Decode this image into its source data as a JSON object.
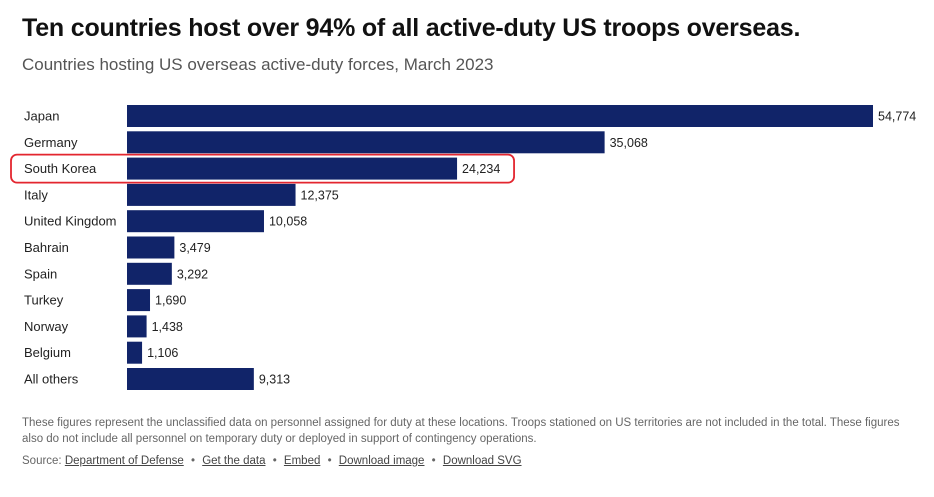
{
  "title": "Ten countries host over 94% of all active-duty US troops overseas.",
  "subtitle": "Countries hosting US overseas active-duty forces, March 2023",
  "chart_data": {
    "type": "bar",
    "orientation": "horizontal",
    "categories": [
      "Japan",
      "Germany",
      "South Korea",
      "Italy",
      "United Kingdom",
      "Bahrain",
      "Spain",
      "Turkey",
      "Norway",
      "Belgium",
      "All others"
    ],
    "values": [
      54774,
      35068,
      24234,
      12375,
      10058,
      3479,
      3292,
      1690,
      1438,
      1106,
      9313
    ],
    "value_labels": [
      "54,774",
      "35,068",
      "24,234",
      "12,375",
      "10,058",
      "3,479",
      "3,292",
      "1,690",
      "1,438",
      "1,106",
      "9,313"
    ],
    "highlighted_category": "South Korea",
    "xlim": [
      0,
      54774
    ],
    "grid": false,
    "bar_color": "#112469",
    "highlight_color": "#e3262f"
  },
  "notes": "These figures represent the unclassified data on personnel assigned for duty at these locations. Troops stationed on US territories are not included in the total. These figures also do not include all personnel on temporary duty or deployed in support of contingency operations.",
  "source": {
    "label": "Source:",
    "links": [
      "Department of Defense",
      "Get the data",
      "Embed",
      "Download image",
      "Download SVG"
    ],
    "separator": "•"
  }
}
